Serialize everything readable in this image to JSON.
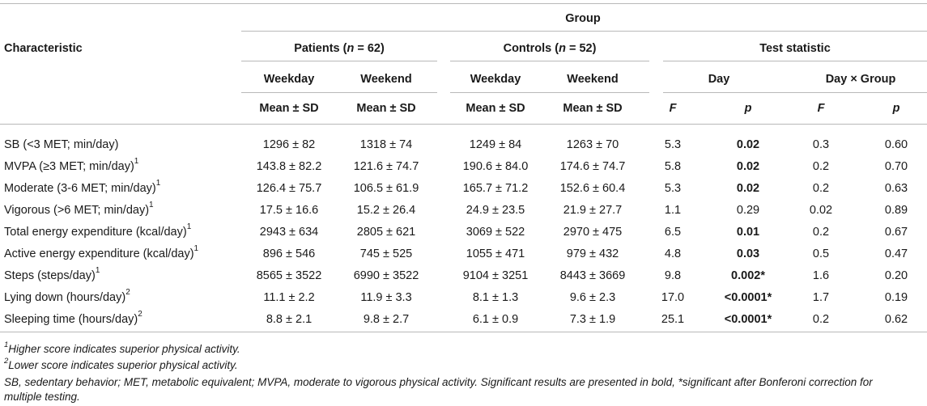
{
  "header": {
    "group": "Group",
    "characteristic": "Characteristic",
    "patients": "Patients (n = 62)",
    "controls": "Controls (n = 52)",
    "test_statistic": "Test statistic",
    "weekday": "Weekday",
    "weekend": "Weekend",
    "day": "Day",
    "day_x_group": "Day × Group",
    "mean_sd": "Mean ± SD",
    "F": "F",
    "p": "p"
  },
  "rows": [
    {
      "label": "SB (<3 MET; min/day)",
      "sup": "",
      "pwd": "1296 ± 82",
      "pwe": "1318 ± 74",
      "cwd": "1249 ± 84",
      "cwe": "1263 ± 70",
      "dF": "5.3",
      "dp": "0.02",
      "dp_bold": true,
      "gF": "0.3",
      "gp": "0.60"
    },
    {
      "label": "MVPA (≥3 MET; min/day)",
      "sup": "1",
      "pwd": "143.8 ± 82.2",
      "pwe": "121.6 ± 74.7",
      "cwd": "190.6 ± 84.0",
      "cwe": "174.6 ± 74.7",
      "dF": "5.8",
      "dp": "0.02",
      "dp_bold": true,
      "gF": "0.2",
      "gp": "0.70"
    },
    {
      "label": "Moderate (3-6 MET; min/day)",
      "sup": "1",
      "pwd": "126.4 ± 75.7",
      "pwe": "106.5 ± 61.9",
      "cwd": "165.7 ± 71.2",
      "cwe": "152.6 ± 60.4",
      "dF": "5.3",
      "dp": "0.02",
      "dp_bold": true,
      "gF": "0.2",
      "gp": "0.63"
    },
    {
      "label": "Vigorous (>6 MET; min/day)",
      "sup": "1",
      "pwd": "17.5 ± 16.6",
      "pwe": "15.2 ± 26.4",
      "cwd": "24.9 ± 23.5",
      "cwe": "21.9 ± 27.7",
      "dF": "1.1",
      "dp": "0.29",
      "dp_bold": false,
      "gF": "0.02",
      "gp": "0.89"
    },
    {
      "label": "Total energy expenditure (kcal/day)",
      "sup": "1",
      "pwd": "2943 ± 634",
      "pwe": "2805 ± 621",
      "cwd": "3069 ± 522",
      "cwe": "2970 ± 475",
      "dF": "6.5",
      "dp": "0.01",
      "dp_bold": true,
      "gF": "0.2",
      "gp": "0.67"
    },
    {
      "label": "Active energy expenditure (kcal/day)",
      "sup": "1",
      "pwd": "896 ± 546",
      "pwe": "745 ± 525",
      "cwd": "1055 ± 471",
      "cwe": "979 ± 432",
      "dF": "4.8",
      "dp": "0.03",
      "dp_bold": true,
      "gF": "0.5",
      "gp": "0.47"
    },
    {
      "label": "Steps (steps/day)",
      "sup": "1",
      "pwd": "8565 ± 3522",
      "pwe": "6990 ± 3522",
      "cwd": "9104 ± 3251",
      "cwe": "8443 ± 3669",
      "dF": "9.8",
      "dp": "0.002*",
      "dp_bold": true,
      "gF": "1.6",
      "gp": "0.20"
    },
    {
      "label": "Lying down (hours/day)",
      "sup": "2",
      "pwd": "11.1 ± 2.2",
      "pwe": "11.9 ± 3.3",
      "cwd": "8.1 ± 1.3",
      "cwe": "9.6 ± 2.3",
      "dF": "17.0",
      "dp": "<0.0001*",
      "dp_bold": true,
      "gF": "1.7",
      "gp": "0.19"
    },
    {
      "label": "Sleeping time (hours/day)",
      "sup": "2",
      "pwd": "8.8 ± 2.1",
      "pwe": "9.8 ± 2.7",
      "cwd": "6.1 ± 0.9",
      "cwe": "7.3 ± 1.9",
      "dF": "25.1",
      "dp": "<0.0001*",
      "dp_bold": true,
      "gF": "0.2",
      "gp": "0.62"
    }
  ],
  "footnotes": {
    "n1_sup": "1",
    "n1": "Higher score indicates superior physical activity.",
    "n2_sup": "2",
    "n2": "Lower score indicates superior physical activity.",
    "abbrev_line1": "SB, sedentary behavior; MET, metabolic equivalent; MVPA, moderate to vigorous physical activity. Significant results are presented in bold, *significant after Bonferoni correction for",
    "abbrev_line2": "multiple testing."
  }
}
